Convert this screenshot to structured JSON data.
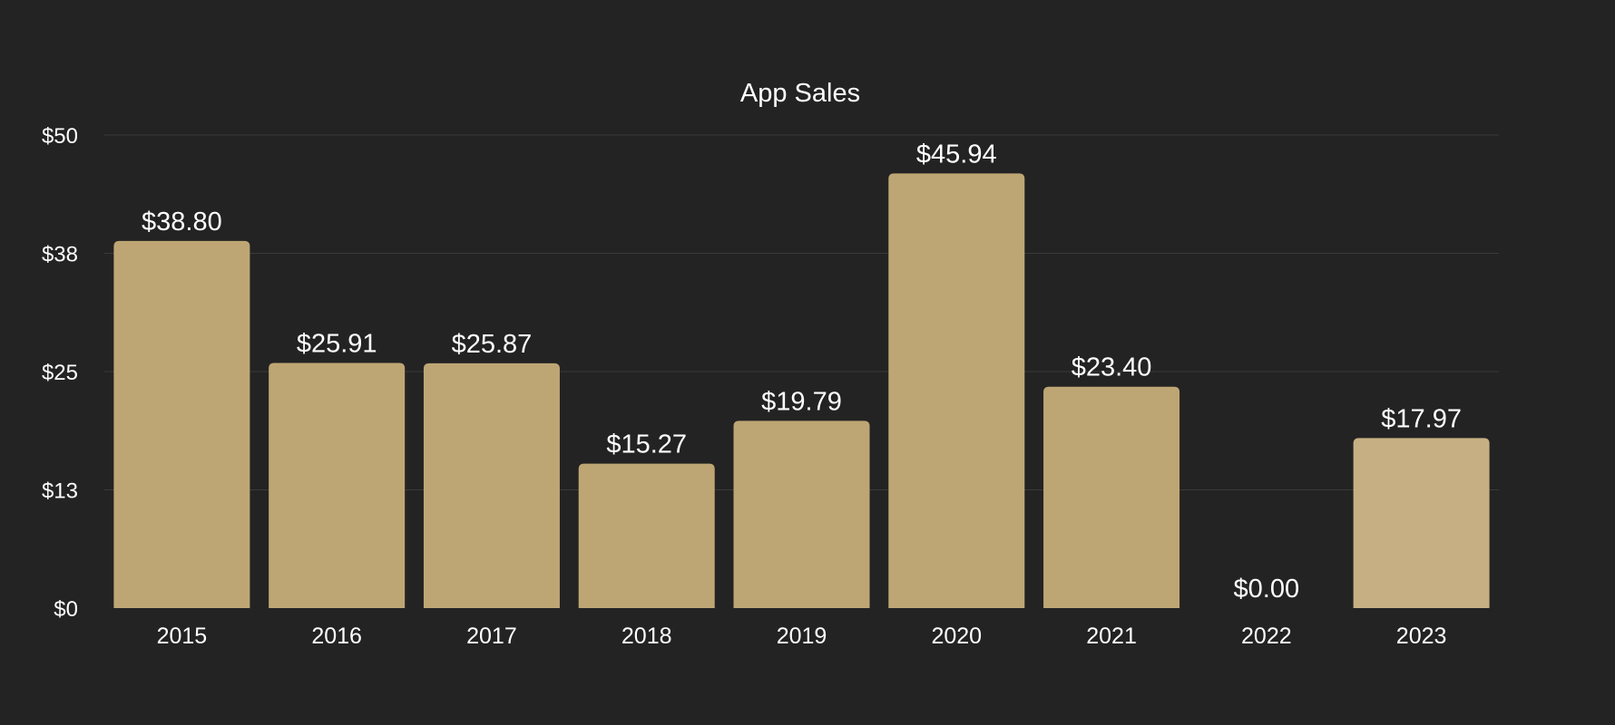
{
  "chart_data": {
    "type": "bar",
    "title": "App Sales",
    "xlabel": "",
    "ylabel": "",
    "categories": [
      "2015",
      "2016",
      "2017",
      "2018",
      "2019",
      "2020",
      "2021",
      "2022",
      "2023"
    ],
    "values": [
      38.8,
      25.91,
      25.87,
      15.27,
      19.79,
      45.94,
      23.4,
      0.0,
      17.97
    ],
    "data_labels": [
      "$38.80",
      "$25.91",
      "$25.87",
      "$15.27",
      "$19.79",
      "$45.94",
      "$23.40",
      "$0.00",
      "$17.97"
    ],
    "y_ticks": [
      0,
      12.5,
      25,
      37.5,
      50
    ],
    "y_tick_labels": [
      "$0",
      "$13",
      "$25",
      "$38",
      "$50"
    ],
    "ylim": [
      0,
      50
    ],
    "grid": true,
    "legend": "none",
    "colors": {
      "background": "#232323",
      "bar": "#bea674",
      "bar_highlight": "#c6b083",
      "text": "#ffffff",
      "grid": "#3a3a3a"
    }
  }
}
